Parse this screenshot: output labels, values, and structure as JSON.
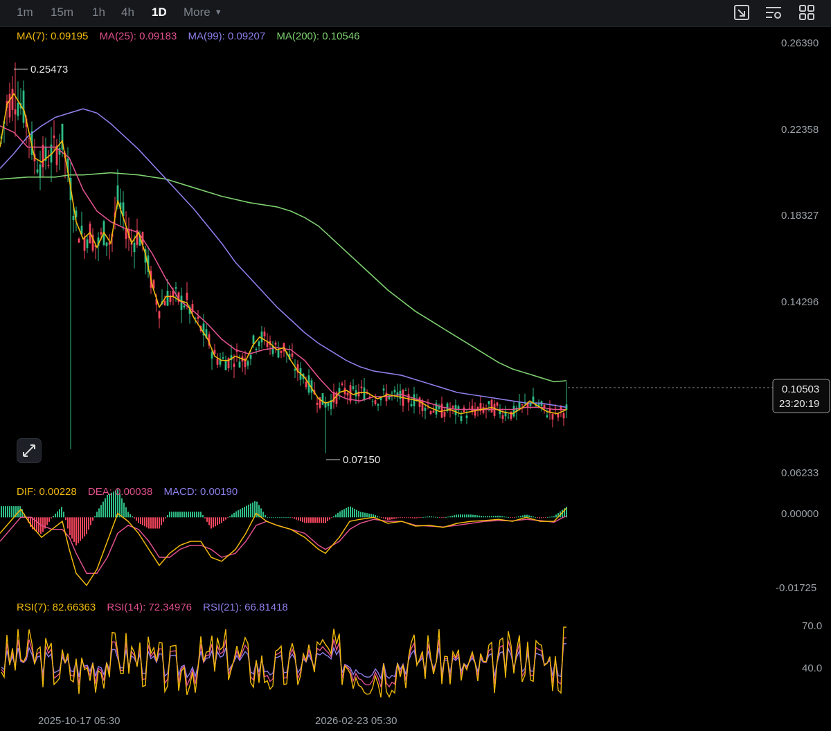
{
  "toolbar": {
    "timeframes": [
      "1m",
      "15m",
      "1h",
      "4h",
      "1D"
    ],
    "active": "1D",
    "more_label": "More",
    "icons": [
      "screenshot-icon",
      "indicator-settings-icon",
      "layout-grid-icon"
    ]
  },
  "legends": {
    "ma": [
      {
        "label": "MA(7): 0.09195",
        "color": "#f0b90b"
      },
      {
        "label": "MA(25): 0.09183",
        "color": "#e0508c"
      },
      {
        "label": "MA(99): 0.09207",
        "color": "#8c7ee8"
      },
      {
        "label": "MA(200): 0.10546",
        "color": "#7ed070"
      }
    ],
    "macd": [
      {
        "label": "DIF: 0.00228",
        "color": "#f0b90b"
      },
      {
        "label": "DEA: 0.00038",
        "color": "#e0508c"
      },
      {
        "label": "MACD: 0.00190",
        "color": "#8c7ee8"
      }
    ],
    "rsi": [
      {
        "label": "RSI(7): 82.66363",
        "color": "#f0b90b"
      },
      {
        "label": "RSI(14): 72.34976",
        "color": "#e0508c"
      },
      {
        "label": "RSI(21): 66.81418",
        "color": "#8c7ee8"
      }
    ]
  },
  "price_axis": [
    "0.26390",
    "0.22358",
    "0.18327",
    "0.14296",
    "0.10503",
    "0.06233"
  ],
  "macd_axis": [
    "0.00000",
    "-0.01725"
  ],
  "rsi_axis": [
    "70.0",
    "40.0"
  ],
  "time_axis": [
    "2025-10-17 05:30",
    "2026-02-23 05:30"
  ],
  "high_label": "0.25473",
  "low_label": "0.07150",
  "current": {
    "price": "0.10503",
    "countdown": "23:20:19"
  },
  "chart_data": {
    "type": "line",
    "title": "",
    "ylim": [
      0.0623,
      0.2639
    ],
    "up_color": "#2ebd85",
    "down_color": "#f6465d",
    "ma7": [
      [
        0,
        0.215
      ],
      [
        10,
        0.235
      ],
      [
        20,
        0.24
      ],
      [
        35,
        0.232
      ],
      [
        50,
        0.21
      ],
      [
        60,
        0.208
      ],
      [
        75,
        0.212
      ],
      [
        90,
        0.218
      ],
      [
        100,
        0.2
      ],
      [
        110,
        0.18
      ],
      [
        120,
        0.172
      ],
      [
        130,
        0.175
      ],
      [
        140,
        0.168
      ],
      [
        150,
        0.175
      ],
      [
        160,
        0.17
      ],
      [
        170,
        0.19
      ],
      [
        180,
        0.18
      ],
      [
        190,
        0.17
      ],
      [
        200,
        0.175
      ],
      [
        210,
        0.165
      ],
      [
        220,
        0.15
      ],
      [
        230,
        0.14
      ],
      [
        240,
        0.145
      ],
      [
        250,
        0.145
      ],
      [
        260,
        0.143
      ],
      [
        270,
        0.142
      ],
      [
        280,
        0.135
      ],
      [
        290,
        0.13
      ],
      [
        300,
        0.125
      ],
      [
        310,
        0.117
      ],
      [
        320,
        0.115
      ],
      [
        330,
        0.115
      ],
      [
        340,
        0.117
      ],
      [
        355,
        0.115
      ],
      [
        365,
        0.122
      ],
      [
        375,
        0.126
      ],
      [
        390,
        0.123
      ],
      [
        400,
        0.12
      ],
      [
        410,
        0.121
      ],
      [
        420,
        0.115
      ],
      [
        430,
        0.11
      ],
      [
        440,
        0.107
      ],
      [
        450,
        0.102
      ],
      [
        460,
        0.097
      ],
      [
        470,
        0.095
      ],
      [
        480,
        0.096
      ],
      [
        490,
        0.1
      ],
      [
        500,
        0.101
      ],
      [
        510,
        0.099
      ],
      [
        520,
        0.1
      ],
      [
        530,
        0.1
      ],
      [
        545,
        0.097
      ],
      [
        560,
        0.099
      ],
      [
        575,
        0.098
      ],
      [
        590,
        0.097
      ],
      [
        605,
        0.096
      ],
      [
        620,
        0.093
      ],
      [
        635,
        0.091
      ],
      [
        650,
        0.092
      ],
      [
        665,
        0.09
      ],
      [
        680,
        0.091
      ],
      [
        695,
        0.092
      ],
      [
        710,
        0.093
      ],
      [
        725,
        0.091
      ],
      [
        740,
        0.09
      ],
      [
        755,
        0.093
      ],
      [
        765,
        0.096
      ],
      [
        775,
        0.094
      ],
      [
        790,
        0.091
      ],
      [
        805,
        0.09
      ],
      [
        818,
        0.092
      ]
    ],
    "ma25": [
      [
        0,
        0.225
      ],
      [
        20,
        0.222
      ],
      [
        40,
        0.215
      ],
      [
        60,
        0.215
      ],
      [
        80,
        0.215
      ],
      [
        100,
        0.21
      ],
      [
        120,
        0.195
      ],
      [
        140,
        0.185
      ],
      [
        160,
        0.18
      ],
      [
        180,
        0.177
      ],
      [
        200,
        0.175
      ],
      [
        220,
        0.165
      ],
      [
        240,
        0.153
      ],
      [
        260,
        0.143
      ],
      [
        280,
        0.138
      ],
      [
        300,
        0.132
      ],
      [
        320,
        0.125
      ],
      [
        340,
        0.12
      ],
      [
        360,
        0.118
      ],
      [
        380,
        0.12
      ],
      [
        400,
        0.121
      ],
      [
        420,
        0.12
      ],
      [
        440,
        0.115
      ],
      [
        460,
        0.107
      ],
      [
        480,
        0.1
      ],
      [
        500,
        0.097
      ],
      [
        520,
        0.096
      ],
      [
        540,
        0.098
      ],
      [
        560,
        0.098
      ],
      [
        580,
        0.099
      ],
      [
        600,
        0.097
      ],
      [
        620,
        0.095
      ],
      [
        640,
        0.093
      ],
      [
        660,
        0.092
      ],
      [
        680,
        0.092
      ],
      [
        700,
        0.092
      ],
      [
        720,
        0.092
      ],
      [
        740,
        0.092
      ],
      [
        760,
        0.093
      ],
      [
        780,
        0.093
      ],
      [
        800,
        0.092
      ],
      [
        818,
        0.092
      ]
    ],
    "ma99": [
      [
        0,
        0.205
      ],
      [
        20,
        0.212
      ],
      [
        40,
        0.22
      ],
      [
        60,
        0.225
      ],
      [
        80,
        0.229
      ],
      [
        100,
        0.231
      ],
      [
        120,
        0.233
      ],
      [
        140,
        0.231
      ],
      [
        160,
        0.226
      ],
      [
        180,
        0.22
      ],
      [
        200,
        0.214
      ],
      [
        220,
        0.207
      ],
      [
        240,
        0.2
      ],
      [
        260,
        0.193
      ],
      [
        280,
        0.186
      ],
      [
        300,
        0.178
      ],
      [
        320,
        0.17
      ],
      [
        340,
        0.161
      ],
      [
        360,
        0.154
      ],
      [
        380,
        0.147
      ],
      [
        400,
        0.14
      ],
      [
        420,
        0.134
      ],
      [
        440,
        0.128
      ],
      [
        460,
        0.123
      ],
      [
        480,
        0.119
      ],
      [
        500,
        0.115
      ],
      [
        520,
        0.112
      ],
      [
        540,
        0.11
      ],
      [
        560,
        0.109
      ],
      [
        580,
        0.108
      ],
      [
        600,
        0.106
      ],
      [
        620,
        0.104
      ],
      [
        640,
        0.102
      ],
      [
        660,
        0.1
      ],
      [
        680,
        0.099
      ],
      [
        700,
        0.098
      ],
      [
        720,
        0.097
      ],
      [
        740,
        0.096
      ],
      [
        760,
        0.095
      ],
      [
        780,
        0.095
      ],
      [
        800,
        0.094
      ],
      [
        818,
        0.093
      ]
    ],
    "ma200": [
      [
        0,
        0.2
      ],
      [
        40,
        0.201
      ],
      [
        80,
        0.201
      ],
      [
        100,
        0.202
      ],
      [
        120,
        0.202
      ],
      [
        160,
        0.203
      ],
      [
        200,
        0.202
      ],
      [
        240,
        0.2
      ],
      [
        280,
        0.196
      ],
      [
        320,
        0.192
      ],
      [
        360,
        0.189
      ],
      [
        380,
        0.188
      ],
      [
        400,
        0.187
      ],
      [
        420,
        0.185
      ],
      [
        440,
        0.182
      ],
      [
        460,
        0.178
      ],
      [
        480,
        0.172
      ],
      [
        500,
        0.166
      ],
      [
        520,
        0.16
      ],
      [
        540,
        0.154
      ],
      [
        560,
        0.148
      ],
      [
        580,
        0.143
      ],
      [
        600,
        0.138
      ],
      [
        620,
        0.134
      ],
      [
        640,
        0.13
      ],
      [
        660,
        0.126
      ],
      [
        680,
        0.122
      ],
      [
        700,
        0.118
      ],
      [
        720,
        0.114
      ],
      [
        740,
        0.111
      ],
      [
        760,
        0.109
      ],
      [
        780,
        0.107
      ],
      [
        800,
        0.105
      ],
      [
        818,
        0.1055
      ]
    ],
    "high": 0.25473,
    "low": 0.0715,
    "current_price": 0.10503,
    "macd_ylim": [
      -0.0195,
      0.003
    ],
    "dif": [
      [
        0,
        -0.004
      ],
      [
        15,
        -0.001
      ],
      [
        30,
        0.002
      ],
      [
        45,
        -0.002
      ],
      [
        60,
        -0.005
      ],
      [
        75,
        -0.003
      ],
      [
        90,
        -0.001
      ],
      [
        100,
        -0.008
      ],
      [
        110,
        -0.014
      ],
      [
        125,
        -0.017
      ],
      [
        140,
        -0.013
      ],
      [
        155,
        -0.006
      ],
      [
        170,
        0.001
      ],
      [
        185,
        -0.001
      ],
      [
        200,
        -0.004
      ],
      [
        215,
        -0.008
      ],
      [
        230,
        -0.012
      ],
      [
        245,
        -0.009
      ],
      [
        260,
        -0.007
      ],
      [
        275,
        -0.006
      ],
      [
        290,
        -0.006
      ],
      [
        305,
        -0.01
      ],
      [
        320,
        -0.011
      ],
      [
        340,
        -0.008
      ],
      [
        355,
        -0.004
      ],
      [
        370,
        0.001
      ],
      [
        385,
        -0.001
      ],
      [
        400,
        -0.002
      ],
      [
        420,
        -0.003
      ],
      [
        440,
        -0.005
      ],
      [
        460,
        -0.008
      ],
      [
        470,
        -0.009
      ],
      [
        490,
        -0.005
      ],
      [
        505,
        -0.001
      ],
      [
        520,
        -0.0005
      ],
      [
        540,
        0.0
      ],
      [
        560,
        -0.0015
      ],
      [
        580,
        -0.001
      ],
      [
        600,
        -0.0022
      ],
      [
        620,
        -0.002
      ],
      [
        640,
        -0.0025
      ],
      [
        660,
        -0.0015
      ],
      [
        680,
        -0.001
      ],
      [
        700,
        -0.0008
      ],
      [
        720,
        -0.0005
      ],
      [
        740,
        -0.001
      ],
      [
        760,
        0.0
      ],
      [
        780,
        -0.001
      ],
      [
        800,
        -0.001
      ],
      [
        818,
        0.0023
      ]
    ],
    "dea": [
      [
        0,
        -0.006
      ],
      [
        15,
        -0.003
      ],
      [
        30,
        0.0
      ],
      [
        45,
        0.0
      ],
      [
        60,
        -0.002
      ],
      [
        75,
        -0.003
      ],
      [
        90,
        -0.003
      ],
      [
        100,
        -0.005
      ],
      [
        110,
        -0.009
      ],
      [
        125,
        -0.014
      ],
      [
        140,
        -0.014
      ],
      [
        155,
        -0.01
      ],
      [
        170,
        -0.004
      ],
      [
        185,
        -0.002
      ],
      [
        200,
        -0.003
      ],
      [
        215,
        -0.006
      ],
      [
        230,
        -0.01
      ],
      [
        245,
        -0.01
      ],
      [
        260,
        -0.008
      ],
      [
        275,
        -0.007
      ],
      [
        290,
        -0.007
      ],
      [
        305,
        -0.008
      ],
      [
        320,
        -0.01
      ],
      [
        340,
        -0.009
      ],
      [
        355,
        -0.006
      ],
      [
        370,
        -0.002
      ],
      [
        385,
        -0.001
      ],
      [
        400,
        -0.002
      ],
      [
        420,
        -0.003
      ],
      [
        440,
        -0.004
      ],
      [
        460,
        -0.007
      ],
      [
        470,
        -0.008
      ],
      [
        490,
        -0.006
      ],
      [
        505,
        -0.003
      ],
      [
        520,
        -0.0015
      ],
      [
        540,
        -0.0005
      ],
      [
        560,
        -0.001
      ],
      [
        580,
        -0.001
      ],
      [
        600,
        -0.002
      ],
      [
        620,
        -0.0022
      ],
      [
        640,
        -0.0024
      ],
      [
        660,
        -0.002
      ],
      [
        680,
        -0.0015
      ],
      [
        700,
        -0.001
      ],
      [
        720,
        -0.0008
      ],
      [
        740,
        -0.0009
      ],
      [
        760,
        -0.0005
      ],
      [
        780,
        -0.0008
      ],
      [
        800,
        -0.0012
      ],
      [
        818,
        0.0004
      ]
    ],
    "rsi_ylim": [
      0,
      100
    ]
  }
}
